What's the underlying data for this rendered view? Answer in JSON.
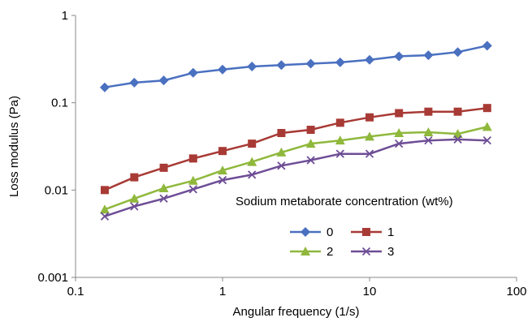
{
  "chart_data": {
    "type": "line",
    "x_scale": "log",
    "y_scale": "log",
    "xlabel": "Angular frequency (1/s)",
    "ylabel": "Loss modulus (Pa)",
    "xlim": [
      0.1,
      100
    ],
    "ylim": [
      0.001,
      1
    ],
    "x_ticks": [
      0.1,
      1,
      10,
      100
    ],
    "x_tick_labels": [
      "0.1",
      "1",
      "10",
      "100"
    ],
    "y_ticks": [
      0.001,
      0.01,
      0.1,
      1
    ],
    "y_tick_labels": [
      "0.001",
      "0.01",
      "0.1",
      "1"
    ],
    "grid": false,
    "legend": {
      "title": "Sodium metaborate concentration (wt%)",
      "placement": "right-center"
    },
    "x": [
      0.158,
      0.251,
      0.398,
      0.631,
      1.0,
      1.585,
      2.512,
      3.981,
      6.31,
      10.0,
      15.85,
      25.12,
      39.81,
      63.1
    ],
    "series": [
      {
        "name": "0",
        "marker": "diamond",
        "color": "#4a70c0",
        "values": [
          0.15,
          0.17,
          0.18,
          0.22,
          0.24,
          0.26,
          0.27,
          0.28,
          0.29,
          0.31,
          0.34,
          0.35,
          0.38,
          0.45
        ]
      },
      {
        "name": "1",
        "marker": "square",
        "color": "#a83a35",
        "values": [
          0.01,
          0.014,
          0.018,
          0.023,
          0.028,
          0.034,
          0.045,
          0.049,
          0.059,
          0.068,
          0.076,
          0.079,
          0.079,
          0.087
        ]
      },
      {
        "name": "2",
        "marker": "triangle",
        "color": "#8fb83c",
        "values": [
          0.006,
          0.008,
          0.0105,
          0.0128,
          0.0168,
          0.021,
          0.027,
          0.034,
          0.037,
          0.041,
          0.045,
          0.046,
          0.044,
          0.053
        ]
      },
      {
        "name": "3",
        "marker": "x",
        "color": "#6e4e96",
        "values": [
          0.005,
          0.0065,
          0.008,
          0.0102,
          0.013,
          0.015,
          0.019,
          0.022,
          0.026,
          0.026,
          0.034,
          0.037,
          0.038,
          0.037
        ]
      }
    ]
  }
}
